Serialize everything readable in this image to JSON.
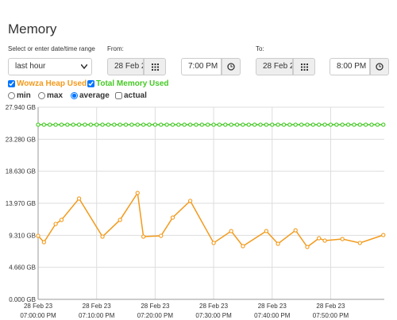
{
  "title": "Memory",
  "range_label": "Select or enter date/time range",
  "range_select": "last hour",
  "from": {
    "label": "From:",
    "date": "28 Feb 2",
    "time": "7:00 PM"
  },
  "to": {
    "label": "To:",
    "date": "28 Feb 2",
    "time": "8:00 PM"
  },
  "series_toggles": [
    {
      "label": "Wowza Heap Used",
      "checked": true
    },
    {
      "label": "Total Memory Used",
      "checked": true
    }
  ],
  "aggregates": [
    {
      "label": "min",
      "selected": false
    },
    {
      "label": "max",
      "selected": false
    },
    {
      "label": "average",
      "selected": true
    }
  ],
  "actual": {
    "label": "actual",
    "checked": false
  },
  "chart_data": {
    "type": "line",
    "grid": true,
    "series": [
      {
        "name": "Wowza Heap Used",
        "color": "#f39a1b",
        "x": [
          "2023-02-28T19:00:00",
          "2023-02-28T19:01:00",
          "2023-02-28T19:03:00",
          "2023-02-28T19:04:00",
          "2023-02-28T19:07:00",
          "2023-02-28T19:11:00",
          "2023-02-28T19:14:00",
          "2023-02-28T19:17:00",
          "2023-02-28T19:18:00",
          "2023-02-28T19:21:00",
          "2023-02-28T19:23:00",
          "2023-02-28T19:26:00",
          "2023-02-28T19:30:00",
          "2023-02-28T19:33:00",
          "2023-02-28T19:35:00",
          "2023-02-28T19:39:00",
          "2023-02-28T19:41:00",
          "2023-02-28T19:44:00",
          "2023-02-28T19:46:00",
          "2023-02-28T19:48:00",
          "2023-02-28T19:49:00",
          "2023-02-28T19:52:00",
          "2023-02-28T19:55:00",
          "2023-02-28T19:59:00"
        ],
        "values": [
          9.24,
          8.31,
          10.97,
          11.55,
          14.66,
          9.12,
          11.55,
          15.47,
          9.12,
          9.24,
          11.89,
          14.32,
          8.2,
          9.93,
          7.74,
          9.93,
          8.08,
          10.04,
          7.62,
          8.89,
          8.54,
          8.77,
          8.2,
          9.35
        ]
      },
      {
        "name": "Total Memory Used",
        "color": "#45c925",
        "x": [
          "2023-02-28T19:00:00",
          "2023-02-28T19:01:00",
          "2023-02-28T19:02:00",
          "2023-02-28T19:03:00",
          "2023-02-28T19:04:00",
          "2023-02-28T19:05:00",
          "2023-02-28T19:06:00",
          "2023-02-28T19:07:00",
          "2023-02-28T19:08:00",
          "2023-02-28T19:09:00",
          "2023-02-28T19:10:00",
          "2023-02-28T19:11:00",
          "2023-02-28T19:12:00",
          "2023-02-28T19:13:00",
          "2023-02-28T19:14:00",
          "2023-02-28T19:15:00",
          "2023-02-28T19:16:00",
          "2023-02-28T19:17:00",
          "2023-02-28T19:18:00",
          "2023-02-28T19:19:00",
          "2023-02-28T19:20:00",
          "2023-02-28T19:21:00",
          "2023-02-28T19:22:00",
          "2023-02-28T19:23:00",
          "2023-02-28T19:24:00",
          "2023-02-28T19:25:00",
          "2023-02-28T19:26:00",
          "2023-02-28T19:27:00",
          "2023-02-28T19:28:00",
          "2023-02-28T19:29:00",
          "2023-02-28T19:30:00",
          "2023-02-28T19:31:00",
          "2023-02-28T19:32:00",
          "2023-02-28T19:33:00",
          "2023-02-28T19:34:00",
          "2023-02-28T19:35:00",
          "2023-02-28T19:36:00",
          "2023-02-28T19:37:00",
          "2023-02-28T19:38:00",
          "2023-02-28T19:39:00",
          "2023-02-28T19:40:00",
          "2023-02-28T19:41:00",
          "2023-02-28T19:42:00",
          "2023-02-28T19:43:00",
          "2023-02-28T19:44:00",
          "2023-02-28T19:45:00",
          "2023-02-28T19:46:00",
          "2023-02-28T19:47:00",
          "2023-02-28T19:48:00",
          "2023-02-28T19:49:00",
          "2023-02-28T19:50:00",
          "2023-02-28T19:51:00",
          "2023-02-28T19:52:00",
          "2023-02-28T19:53:00",
          "2023-02-28T19:54:00",
          "2023-02-28T19:55:00",
          "2023-02-28T19:56:00",
          "2023-02-28T19:57:00",
          "2023-02-28T19:58:00",
          "2023-02-28T19:59:00"
        ],
        "values": [
          25.4,
          25.4,
          25.4,
          25.4,
          25.4,
          25.4,
          25.4,
          25.4,
          25.4,
          25.4,
          25.4,
          25.4,
          25.4,
          25.4,
          25.4,
          25.4,
          25.4,
          25.4,
          25.4,
          25.4,
          25.4,
          25.4,
          25.4,
          25.4,
          25.4,
          25.4,
          25.4,
          25.4,
          25.4,
          25.4,
          25.4,
          25.4,
          25.4,
          25.4,
          25.4,
          25.4,
          25.4,
          25.4,
          25.4,
          25.4,
          25.4,
          25.4,
          25.4,
          25.4,
          25.4,
          25.4,
          25.4,
          25.4,
          25.4,
          25.4,
          25.4,
          25.4,
          25.4,
          25.4,
          25.4,
          25.4,
          25.4,
          25.4,
          25.4,
          25.4
        ]
      }
    ],
    "xlim": [
      "2023-02-28T19:00:00",
      "2023-02-28T19:59:10"
    ],
    "xticks": [
      {
        "value": "2023-02-28T19:00:00",
        "label": [
          "28 Feb 23",
          "07:00:00 PM"
        ]
      },
      {
        "value": "2023-02-28T19:10:00",
        "label": [
          "28 Feb 23",
          "07:10:00 PM"
        ]
      },
      {
        "value": "2023-02-28T19:20:00",
        "label": [
          "28 Feb 23",
          "07:20:00 PM"
        ]
      },
      {
        "value": "2023-02-28T19:30:00",
        "label": [
          "28 Feb 23",
          "07:30:00 PM"
        ]
      },
      {
        "value": "2023-02-28T19:40:00",
        "label": [
          "28 Feb 23",
          "07:40:00 PM"
        ]
      },
      {
        "value": "2023-02-28T19:50:00",
        "label": [
          "28 Feb 23",
          "07:50:00 PM"
        ]
      }
    ],
    "ylim": [
      0,
      27.94
    ],
    "yticks": [
      {
        "value": 0,
        "label": "0.000 GB"
      },
      {
        "value": 4.66,
        "label": "4.660 GB"
      },
      {
        "value": 9.31,
        "label": "9.310 GB"
      },
      {
        "value": 13.97,
        "label": "13.970 GB"
      },
      {
        "value": 18.63,
        "label": "18.630 GB"
      },
      {
        "value": 23.28,
        "label": "23.280 GB"
      },
      {
        "value": 27.94,
        "label": "27.940 GB"
      }
    ]
  }
}
